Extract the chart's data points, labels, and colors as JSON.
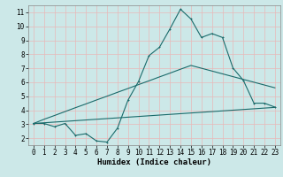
{
  "xlabel": "Humidex (Indice chaleur)",
  "bg_color": "#cce8e8",
  "grid_color": "#e8b8b8",
  "line_color": "#1a6b6b",
  "x_data": [
    0,
    1,
    2,
    3,
    4,
    5,
    6,
    7,
    8,
    9,
    10,
    11,
    12,
    13,
    14,
    15,
    16,
    17,
    18,
    19,
    20,
    21,
    22,
    23
  ],
  "y_main": [
    3.05,
    3.05,
    2.82,
    3.05,
    2.2,
    2.32,
    1.8,
    1.72,
    2.72,
    4.72,
    6.05,
    7.9,
    8.5,
    9.82,
    11.22,
    10.52,
    9.2,
    9.48,
    9.2,
    7.02,
    6.12,
    4.5,
    4.5,
    4.22
  ],
  "y_upper": [
    3.05,
    3.35,
    3.62,
    3.9,
    4.18,
    4.45,
    4.73,
    5.0,
    5.28,
    5.55,
    5.83,
    6.1,
    6.38,
    6.65,
    6.93,
    7.2,
    7.0,
    6.8,
    6.6,
    6.4,
    6.2,
    6.0,
    5.8,
    5.6
  ],
  "y_lower": [
    3.05,
    3.1,
    3.15,
    3.2,
    3.25,
    3.3,
    3.35,
    3.4,
    3.45,
    3.5,
    3.55,
    3.6,
    3.65,
    3.7,
    3.75,
    3.8,
    3.85,
    3.9,
    3.95,
    4.0,
    4.05,
    4.1,
    4.15,
    4.2
  ],
  "xlim": [
    -0.5,
    23.5
  ],
  "ylim": [
    1.5,
    11.5
  ],
  "yticks": [
    2,
    3,
    4,
    5,
    6,
    7,
    8,
    9,
    10,
    11
  ],
  "xticks": [
    0,
    1,
    2,
    3,
    4,
    5,
    6,
    7,
    8,
    9,
    10,
    11,
    12,
    13,
    14,
    15,
    16,
    17,
    18,
    19,
    20,
    21,
    22,
    23
  ],
  "tick_fontsize": 5.5,
  "label_fontsize": 6.5,
  "linewidth": 0.8,
  "markersize": 2.0
}
